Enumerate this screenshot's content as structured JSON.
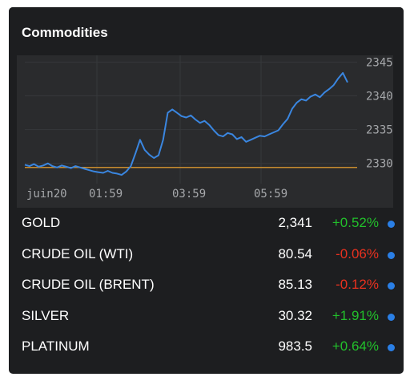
{
  "widget": {
    "title": "Commodities"
  },
  "chart": {
    "y_ticks": [
      "2345",
      "2340",
      "2335",
      "2330"
    ],
    "x_ticks": [
      "juin20",
      "01:59",
      "03:59",
      "05:59"
    ],
    "line_color": "#3a86e0",
    "baseline_color": "#c98d2f"
  },
  "chart_data": {
    "type": "line",
    "xlabel": "",
    "ylabel": "",
    "y_ticks": [
      2345,
      2340,
      2335,
      2330
    ],
    "x_ticks": [
      "juin20",
      "01:59",
      "03:59",
      "05:59"
    ],
    "ylim": [
      2327,
      2346
    ],
    "baseline": 2329.4,
    "series": [
      {
        "values": [
          2329.8,
          2329.6,
          2329.9,
          2329.5,
          2329.7,
          2330.0,
          2329.6,
          2329.4,
          2329.7,
          2329.5,
          2329.3,
          2329.6,
          2329.4,
          2329.2,
          2329.0,
          2328.8,
          2328.7,
          2328.6,
          2328.9,
          2328.6,
          2328.5,
          2328.3,
          2328.8,
          2329.6,
          2331.5,
          2333.5,
          2332.0,
          2331.3,
          2330.8,
          2331.2,
          2333.5,
          2337.5,
          2338.0,
          2337.5,
          2337.0,
          2336.8,
          2337.1,
          2336.5,
          2336.0,
          2336.3,
          2335.7,
          2334.9,
          2334.2,
          2334.0,
          2334.5,
          2334.3,
          2333.6,
          2333.9,
          2333.2,
          2333.5,
          2333.8,
          2334.1,
          2334.0,
          2334.3,
          2334.6,
          2334.9,
          2335.8,
          2336.6,
          2338.1,
          2339.0,
          2339.5,
          2339.3,
          2339.9,
          2340.2,
          2339.8,
          2340.5,
          2341.0,
          2341.6,
          2342.6,
          2343.4,
          2342.0
        ]
      }
    ]
  },
  "rows": [
    {
      "name": "GOLD",
      "price": "2,341",
      "change": "+0.52%",
      "color": "#22c02b"
    },
    {
      "name": "CRUDE OIL (WTI)",
      "price": "80.54",
      "change": "-0.06%",
      "color": "#e8311f"
    },
    {
      "name": "CRUDE OIL (BRENT)",
      "price": "85.13",
      "change": "-0.12%",
      "color": "#e8311f"
    },
    {
      "name": "SILVER",
      "price": "30.32",
      "change": "+1.91%",
      "color": "#22c02b"
    },
    {
      "name": "PLATINUM",
      "price": "983.5",
      "change": "+0.64%",
      "color": "#22c02b"
    }
  ]
}
